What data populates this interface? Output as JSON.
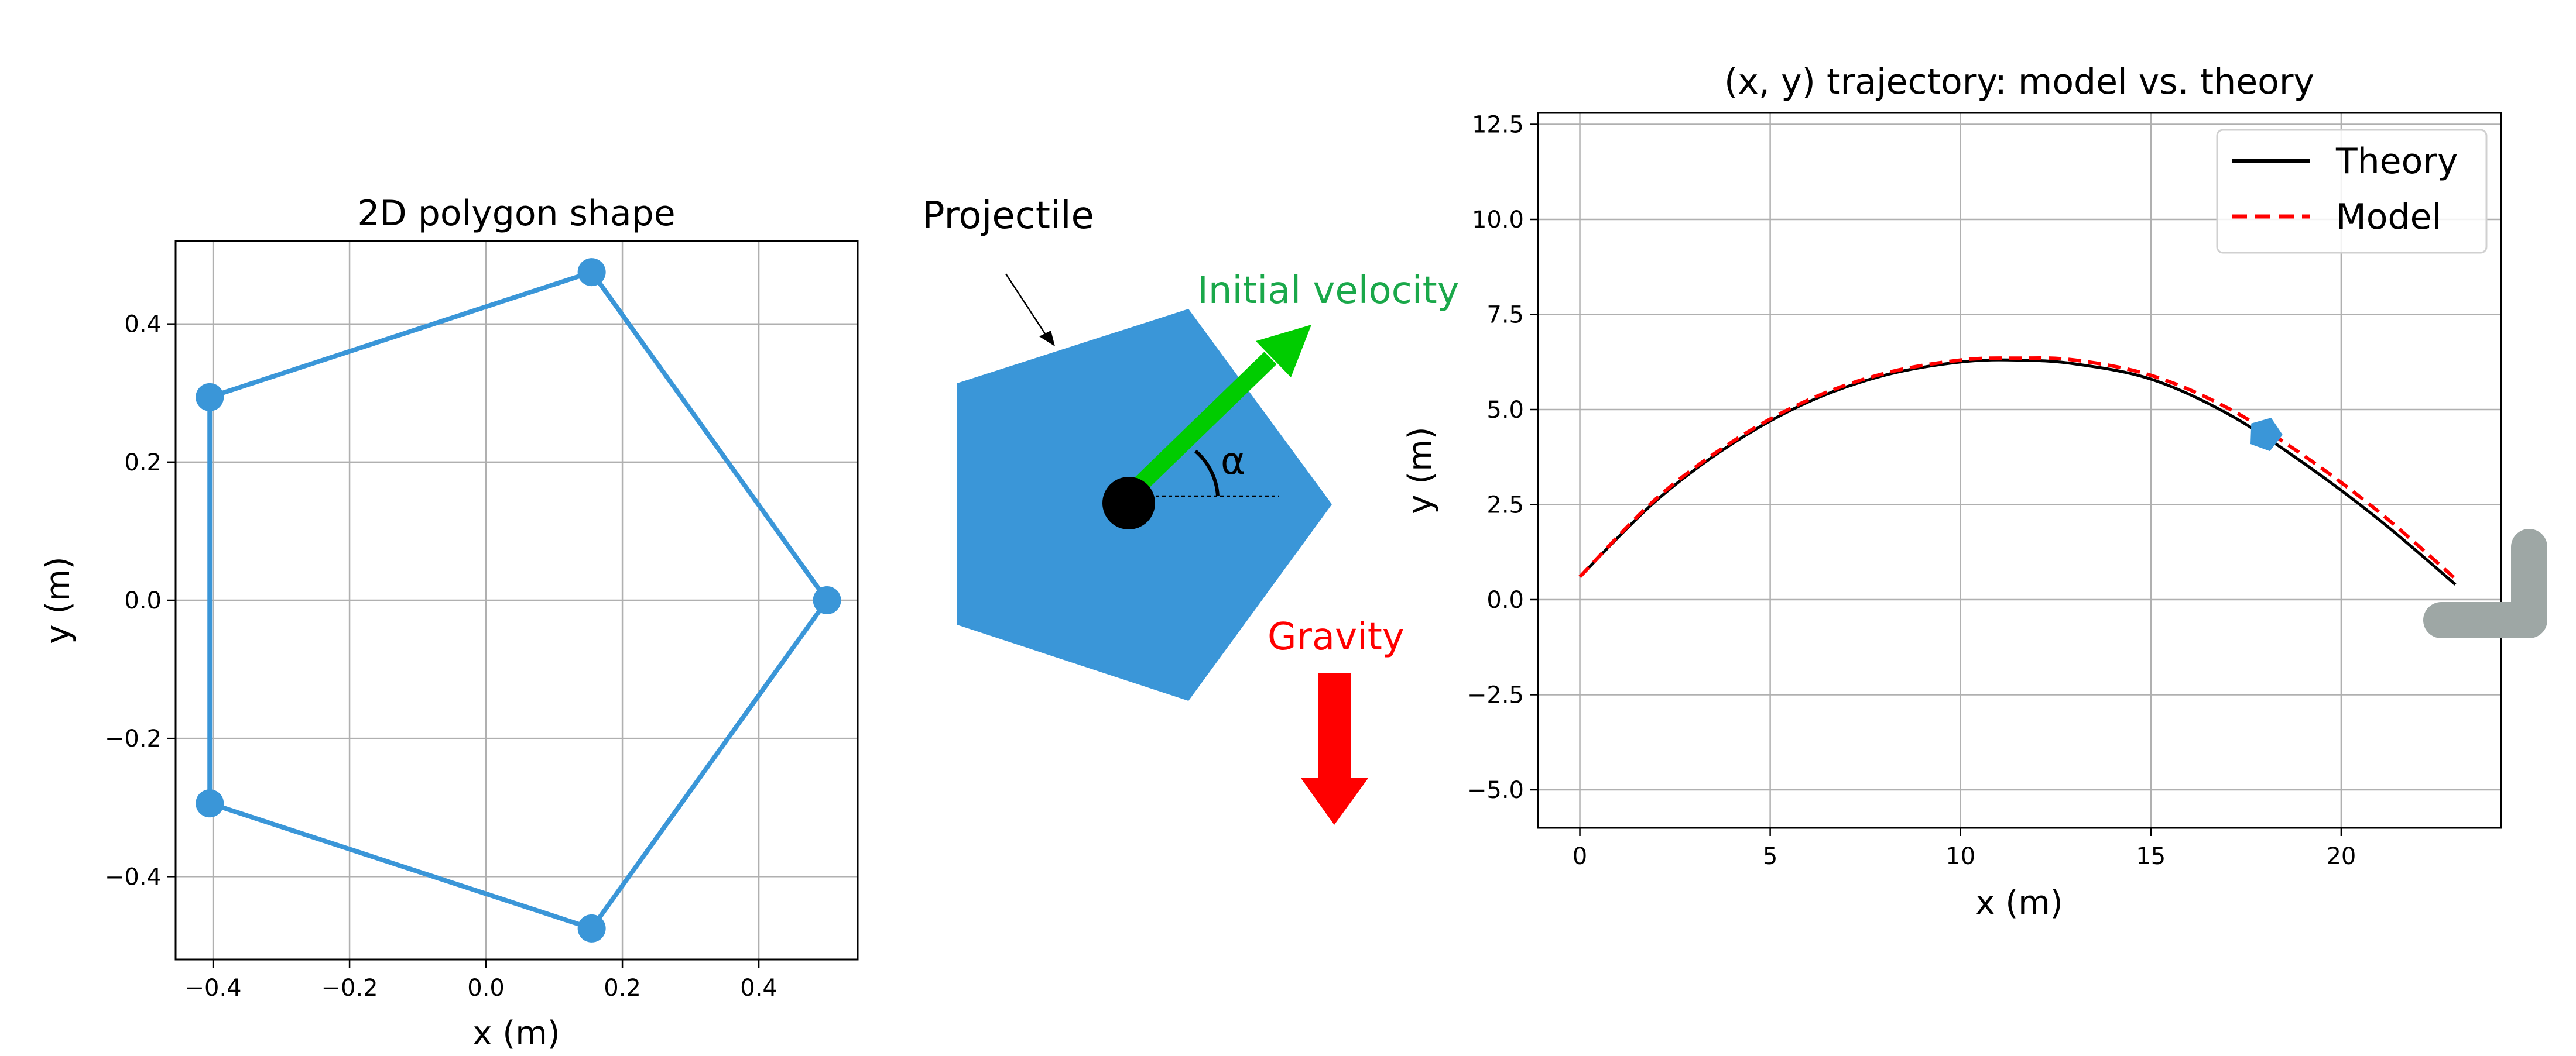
{
  "colors": {
    "polygon": "#3a96d8",
    "theory": "#000000",
    "model": "#ff0000",
    "velocity": "#00cc00",
    "gravity": "#ff0000",
    "velocity_label": "#1aa84a",
    "grid": "#b0b0b0",
    "icon": "#9ea7a5"
  },
  "chart_data": [
    {
      "type": "line",
      "title": "2D polygon shape",
      "xlabel": "x (m)",
      "ylabel": "y (m)",
      "xlim": [
        -0.455,
        0.545
      ],
      "ylim": [
        -0.52,
        0.52
      ],
      "xticks": [
        -0.4,
        -0.2,
        0.0,
        0.2,
        0.4
      ],
      "xtick_labels": [
        "−0.4",
        "−0.2",
        "0.0",
        "0.2",
        "0.4"
      ],
      "yticks": [
        -0.4,
        -0.2,
        0.0,
        0.2,
        0.4
      ],
      "ytick_labels": [
        "−0.4",
        "−0.2",
        "0.0",
        "0.2",
        "0.4"
      ],
      "grid": true,
      "series": [
        {
          "x": [
            0.5,
            0.155,
            -0.405,
            -0.405,
            0.155,
            0.5
          ],
          "y": [
            0.0,
            0.475,
            0.294,
            -0.294,
            -0.475,
            0.0
          ],
          "markers": true
        }
      ]
    },
    {
      "type": "diagram",
      "labels": {
        "projectile": "Projectile",
        "velocity": "Initial velocity",
        "angle": "α",
        "gravity": "Gravity"
      }
    },
    {
      "type": "line",
      "title": "(x, y) trajectory: model vs. theory",
      "xlabel": "x (m)",
      "ylabel": "y (m)",
      "xlim": [
        -1.1,
        24.2
      ],
      "ylim": [
        -6.0,
        12.8
      ],
      "xticks": [
        0,
        5,
        10,
        15,
        20
      ],
      "xtick_labels": [
        "0",
        "5",
        "10",
        "15",
        "20"
      ],
      "yticks": [
        -5.0,
        -2.5,
        0.0,
        2.5,
        5.0,
        7.5,
        10.0,
        12.5
      ],
      "ytick_labels": [
        "−5.0",
        "−2.5",
        "0.0",
        "2.5",
        "5.0",
        "7.5",
        "10.0",
        "12.5"
      ],
      "grid": true,
      "legend": "top-right",
      "series": [
        {
          "name": "Theory",
          "style": "solid",
          "x": [
            0,
            2,
            4,
            6,
            8,
            10,
            11.5,
            13,
            15,
            17,
            19,
            21,
            23
          ],
          "y": [
            0.6,
            2.6,
            4.1,
            5.2,
            5.9,
            6.25,
            6.3,
            6.2,
            5.8,
            4.9,
            3.6,
            2.1,
            0.4
          ]
        },
        {
          "name": "Model",
          "style": "dashed",
          "x": [
            0,
            2,
            4,
            6,
            8,
            10,
            11.5,
            13,
            15,
            17,
            19,
            21,
            23
          ],
          "y": [
            0.6,
            2.65,
            4.15,
            5.25,
            5.95,
            6.3,
            6.35,
            6.3,
            5.9,
            5.05,
            3.8,
            2.3,
            0.55
          ]
        }
      ],
      "marker_position": {
        "x": 18.0,
        "y": 4.35
      }
    }
  ]
}
